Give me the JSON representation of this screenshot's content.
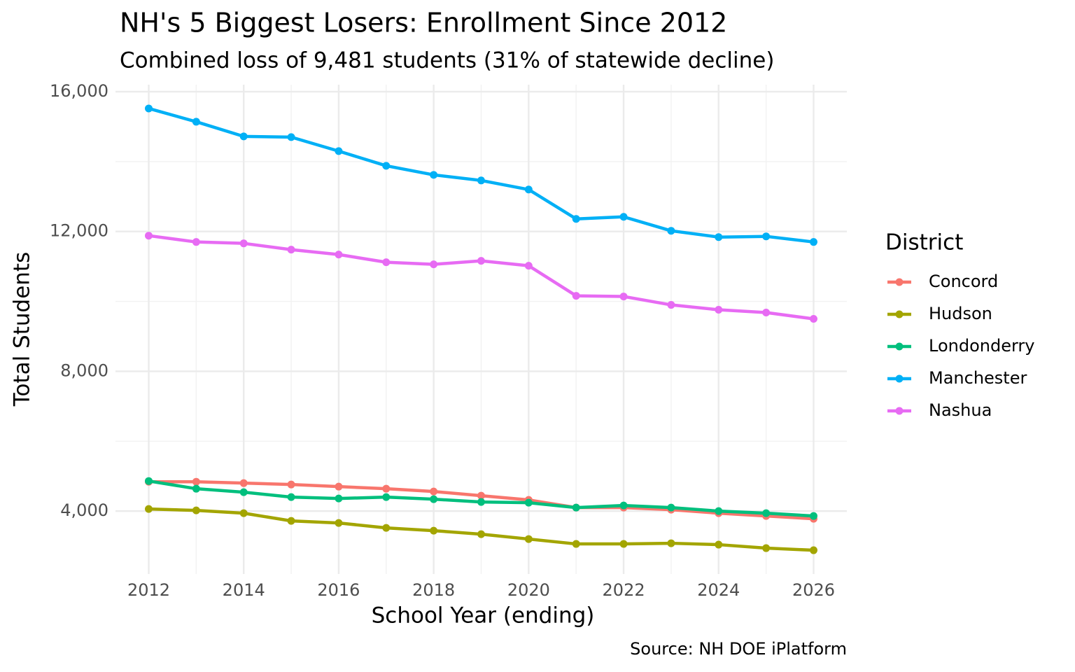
{
  "chart_data": {
    "type": "line",
    "title": "NH's 5 Biggest Losers: Enrollment Since 2012",
    "subtitle": "Combined loss of 9,481 students (31% of statewide decline)",
    "x_label": "School Year (ending)",
    "y_label": "Total Students",
    "caption": "Source: NH DOE iPlatform",
    "legend_title": "District",
    "legend": "right",
    "grid": true,
    "x": [
      2012,
      2013,
      2014,
      2015,
      2016,
      2017,
      2018,
      2019,
      2020,
      2021,
      2022,
      2023,
      2024,
      2025,
      2026
    ],
    "xlim": [
      2011.3,
      2026.7
    ],
    "xticks": [
      2012,
      2014,
      2016,
      2018,
      2020,
      2022,
      2024,
      2026
    ],
    "xminor": [
      2013,
      2015,
      2017,
      2019,
      2021,
      2023,
      2025
    ],
    "ylim": [
      2200,
      16200
    ],
    "yticks": [
      {
        "value": 4000,
        "label": "4,000"
      },
      {
        "value": 8000,
        "label": "8,000"
      },
      {
        "value": 12000,
        "label": "12,000"
      },
      {
        "value": 16000,
        "label": "16,000"
      }
    ],
    "yminor": [
      6000,
      10000,
      14000
    ],
    "series": [
      {
        "name": "Concord",
        "color": "#F8766D",
        "values": [
          4840,
          4840,
          4800,
          4760,
          4700,
          4640,
          4560,
          4440,
          4320,
          4100,
          4100,
          4040,
          3940,
          3860,
          3780
        ]
      },
      {
        "name": "Hudson",
        "color": "#A3A500",
        "values": [
          4060,
          4020,
          3940,
          3720,
          3660,
          3520,
          3440,
          3340,
          3200,
          3060,
          3060,
          3080,
          3040,
          2940,
          2880
        ]
      },
      {
        "name": "Londonderry",
        "color": "#00BF7D",
        "values": [
          4860,
          4640,
          4540,
          4400,
          4360,
          4400,
          4340,
          4260,
          4240,
          4100,
          4160,
          4100,
          4000,
          3940,
          3860
        ]
      },
      {
        "name": "Manchester",
        "color": "#00B0F6",
        "values": [
          15520,
          15140,
          14720,
          14700,
          14300,
          13880,
          13620,
          13460,
          13200,
          12360,
          12420,
          12020,
          11840,
          11860,
          11700
        ]
      },
      {
        "name": "Nashua",
        "color": "#E76BF3",
        "values": [
          11880,
          11700,
          11660,
          11480,
          11340,
          11120,
          11060,
          11160,
          11020,
          10160,
          10140,
          9900,
          9760,
          9680,
          9500
        ]
      }
    ]
  }
}
